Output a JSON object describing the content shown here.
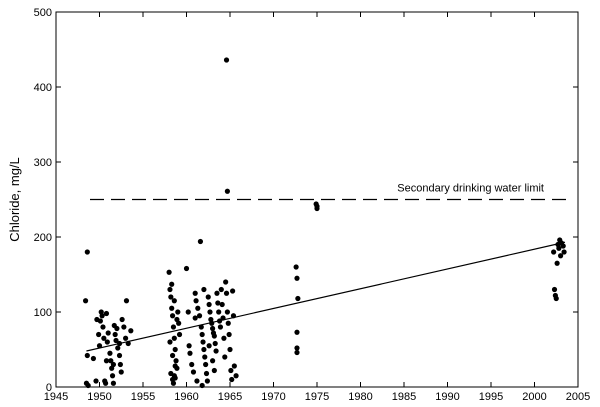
{
  "chart_data": {
    "type": "scatter",
    "title": "",
    "xlabel": "",
    "ylabel": "Chloride, mg/L",
    "xlim": [
      1945,
      2005
    ],
    "ylim": [
      0,
      500
    ],
    "xticks": [
      1945,
      1950,
      1955,
      1960,
      1965,
      1970,
      1975,
      1980,
      1985,
      1990,
      1995,
      2000,
      2005
    ],
    "yticks": [
      0,
      100,
      200,
      300,
      400,
      500
    ],
    "grid": false,
    "legend": "none",
    "colors": {
      "points": "#000000",
      "lines": "#000000",
      "frame": "#000000"
    },
    "points": [
      [
        1948.6,
        180
      ],
      [
        1948.4,
        115
      ],
      [
        1948.6,
        42
      ],
      [
        1948.5,
        5
      ],
      [
        1948.7,
        2
      ],
      [
        1949.3,
        38
      ],
      [
        1949.6,
        8
      ],
      [
        1949.7,
        90
      ],
      [
        1949.9,
        70
      ],
      [
        1950.0,
        55
      ],
      [
        1950.1,
        88
      ],
      [
        1950.2,
        100
      ],
      [
        1950.3,
        95
      ],
      [
        1950.4,
        80
      ],
      [
        1950.5,
        65
      ],
      [
        1950.6,
        8
      ],
      [
        1950.7,
        5
      ],
      [
        1950.8,
        98
      ],
      [
        1950.9,
        60
      ],
      [
        1951.0,
        72
      ],
      [
        1951.2,
        45
      ],
      [
        1951.3,
        35
      ],
      [
        1951.4,
        25
      ],
      [
        1951.5,
        15
      ],
      [
        1951.6,
        5
      ],
      [
        1951.7,
        82
      ],
      [
        1951.8,
        70
      ],
      [
        1951.9,
        62
      ],
      [
        1952.0,
        78
      ],
      [
        1952.1,
        52
      ],
      [
        1952.3,
        42
      ],
      [
        1952.4,
        30
      ],
      [
        1952.5,
        20
      ],
      [
        1952.6,
        90
      ],
      [
        1952.8,
        80
      ],
      [
        1953.0,
        65
      ],
      [
        1953.1,
        115
      ],
      [
        1953.3,
        58
      ],
      [
        1953.6,
        75
      ],
      [
        1950.8,
        35
      ],
      [
        1951.6,
        30
      ],
      [
        1952.3,
        58
      ],
      [
        1958.0,
        153
      ],
      [
        1958.1,
        130
      ],
      [
        1958.2,
        120
      ],
      [
        1958.3,
        105
      ],
      [
        1958.4,
        95
      ],
      [
        1958.5,
        80
      ],
      [
        1958.6,
        65
      ],
      [
        1958.7,
        50
      ],
      [
        1958.8,
        35
      ],
      [
        1958.9,
        25
      ],
      [
        1958.2,
        18
      ],
      [
        1958.4,
        10
      ],
      [
        1958.5,
        5
      ],
      [
        1958.6,
        15
      ],
      [
        1958.7,
        28
      ],
      [
        1959.0,
        100
      ],
      [
        1959.1,
        85
      ],
      [
        1959.2,
        70
      ],
      [
        1958.3,
        137
      ],
      [
        1958.6,
        115
      ],
      [
        1958.9,
        90
      ],
      [
        1958.1,
        60
      ],
      [
        1958.4,
        42
      ],
      [
        1958.7,
        12
      ],
      [
        1960.0,
        158
      ],
      [
        1960.2,
        100
      ],
      [
        1960.4,
        45
      ],
      [
        1960.6,
        30
      ],
      [
        1960.8,
        20
      ],
      [
        1961.0,
        125
      ],
      [
        1961.1,
        115
      ],
      [
        1961.3,
        105
      ],
      [
        1961.5,
        95
      ],
      [
        1961.6,
        194
      ],
      [
        1961.7,
        80
      ],
      [
        1961.8,
        70
      ],
      [
        1961.9,
        60
      ],
      [
        1962.0,
        50
      ],
      [
        1962.1,
        40
      ],
      [
        1962.2,
        30
      ],
      [
        1962.3,
        18
      ],
      [
        1962.4,
        8
      ],
      [
        1962.5,
        120
      ],
      [
        1962.6,
        110
      ],
      [
        1962.7,
        100
      ],
      [
        1962.8,
        90
      ],
      [
        1962.9,
        85
      ],
      [
        1963.0,
        78
      ],
      [
        1963.1,
        72
      ],
      [
        1963.2,
        68
      ],
      [
        1963.3,
        58
      ],
      [
        1963.4,
        48
      ],
      [
        1963.5,
        125
      ],
      [
        1963.6,
        112
      ],
      [
        1963.7,
        100
      ],
      [
        1963.8,
        88
      ],
      [
        1963.9,
        80
      ],
      [
        1964.0,
        130
      ],
      [
        1964.1,
        110
      ],
      [
        1964.2,
        92
      ],
      [
        1964.3,
        65
      ],
      [
        1964.4,
        40
      ],
      [
        1964.5,
        140
      ],
      [
        1964.6,
        125
      ],
      [
        1964.7,
        100
      ],
      [
        1964.8,
        85
      ],
      [
        1964.9,
        70
      ],
      [
        1965.0,
        50
      ],
      [
        1965.1,
        22
      ],
      [
        1965.2,
        10
      ],
      [
        1965.3,
        128
      ],
      [
        1965.4,
        95
      ],
      [
        1965.5,
        28
      ],
      [
        1965.7,
        15
      ],
      [
        1961.2,
        8
      ],
      [
        1961.8,
        2
      ],
      [
        1963.2,
        22
      ],
      [
        1962.6,
        55
      ],
      [
        1964.6,
        436
      ],
      [
        1964.7,
        261
      ],
      [
        1960.3,
        55
      ],
      [
        1961.0,
        92
      ],
      [
        1963.0,
        35
      ],
      [
        1962.0,
        130
      ],
      [
        1972.6,
        160
      ],
      [
        1972.7,
        145
      ],
      [
        1972.8,
        118
      ],
      [
        1972.7,
        73
      ],
      [
        1972.7,
        52
      ],
      [
        1972.7,
        46
      ],
      [
        1974.9,
        244
      ],
      [
        1975.0,
        241
      ],
      [
        1975.0,
        238
      ],
      [
        2002.2,
        180
      ],
      [
        2002.3,
        130
      ],
      [
        2002.4,
        122
      ],
      [
        2002.5,
        118
      ],
      [
        2002.6,
        165
      ],
      [
        2002.7,
        190
      ],
      [
        2002.8,
        185
      ],
      [
        2002.9,
        196
      ],
      [
        2003.0,
        175
      ],
      [
        2003.1,
        192
      ],
      [
        2003.3,
        188
      ],
      [
        2003.4,
        180
      ]
    ],
    "trend_line": {
      "x": [
        1948.5,
        2003.5
      ],
      "y": [
        48,
        193
      ]
    },
    "reference_line": {
      "y": 250,
      "style": "dashed",
      "label": "Secondary drinking water limit"
    }
  }
}
